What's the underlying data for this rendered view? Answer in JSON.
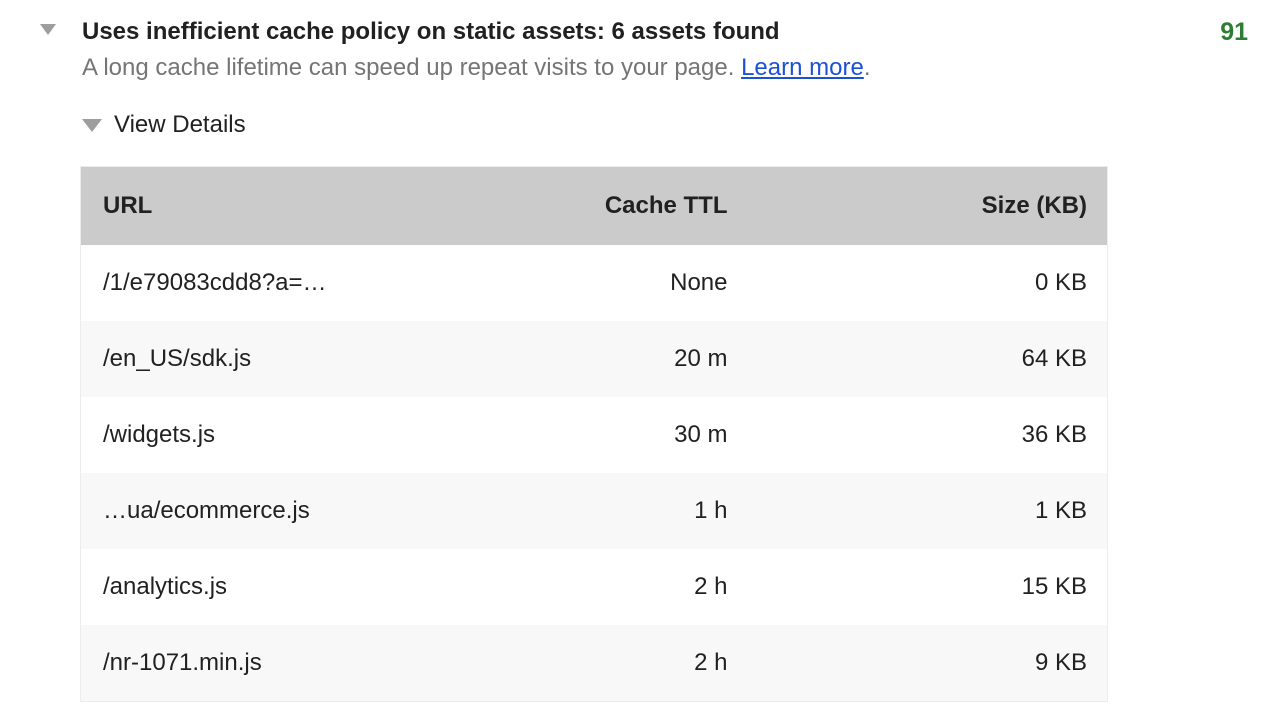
{
  "audit": {
    "expand_icon": "triangle-down",
    "title": "Uses inefficient cache policy on static assets: 6 assets found",
    "score": "91",
    "description": "A long cache lifetime can speed up repeat visits to your page.",
    "learn_more": {
      "label": "Learn more",
      "suffix": "."
    },
    "view_details": {
      "icon": "triangle-down",
      "label": "View Details"
    }
  },
  "table": {
    "headers": {
      "url": "URL",
      "ttl": "Cache TTL",
      "size": "Size (KB)"
    },
    "rows": [
      {
        "url": "/1/e79083cdd8?a=…",
        "ttl": "None",
        "size": "0 KB"
      },
      {
        "url": "/en_US/sdk.js",
        "ttl": "20 m",
        "size": "64 KB"
      },
      {
        "url": "/widgets.js",
        "ttl": "30 m",
        "size": "36 KB"
      },
      {
        "url": "…ua/ecommerce.js",
        "ttl": "1 h",
        "size": "1 KB"
      },
      {
        "url": "/analytics.js",
        "ttl": "2 h",
        "size": "15 KB"
      },
      {
        "url": "/nr-1071.min.js",
        "ttl": "2 h",
        "size": "9 KB"
      }
    ]
  },
  "colors": {
    "score_green": "#2e7d32",
    "link_blue": "#1d50d8",
    "title_text": "#212121",
    "description_gray": "#757575",
    "table_header_bg": "#cbcbcb",
    "row_alt_bg": "#f8f8f8",
    "triangle_gray": "#9e9e9e",
    "table_border": "#ececec"
  }
}
